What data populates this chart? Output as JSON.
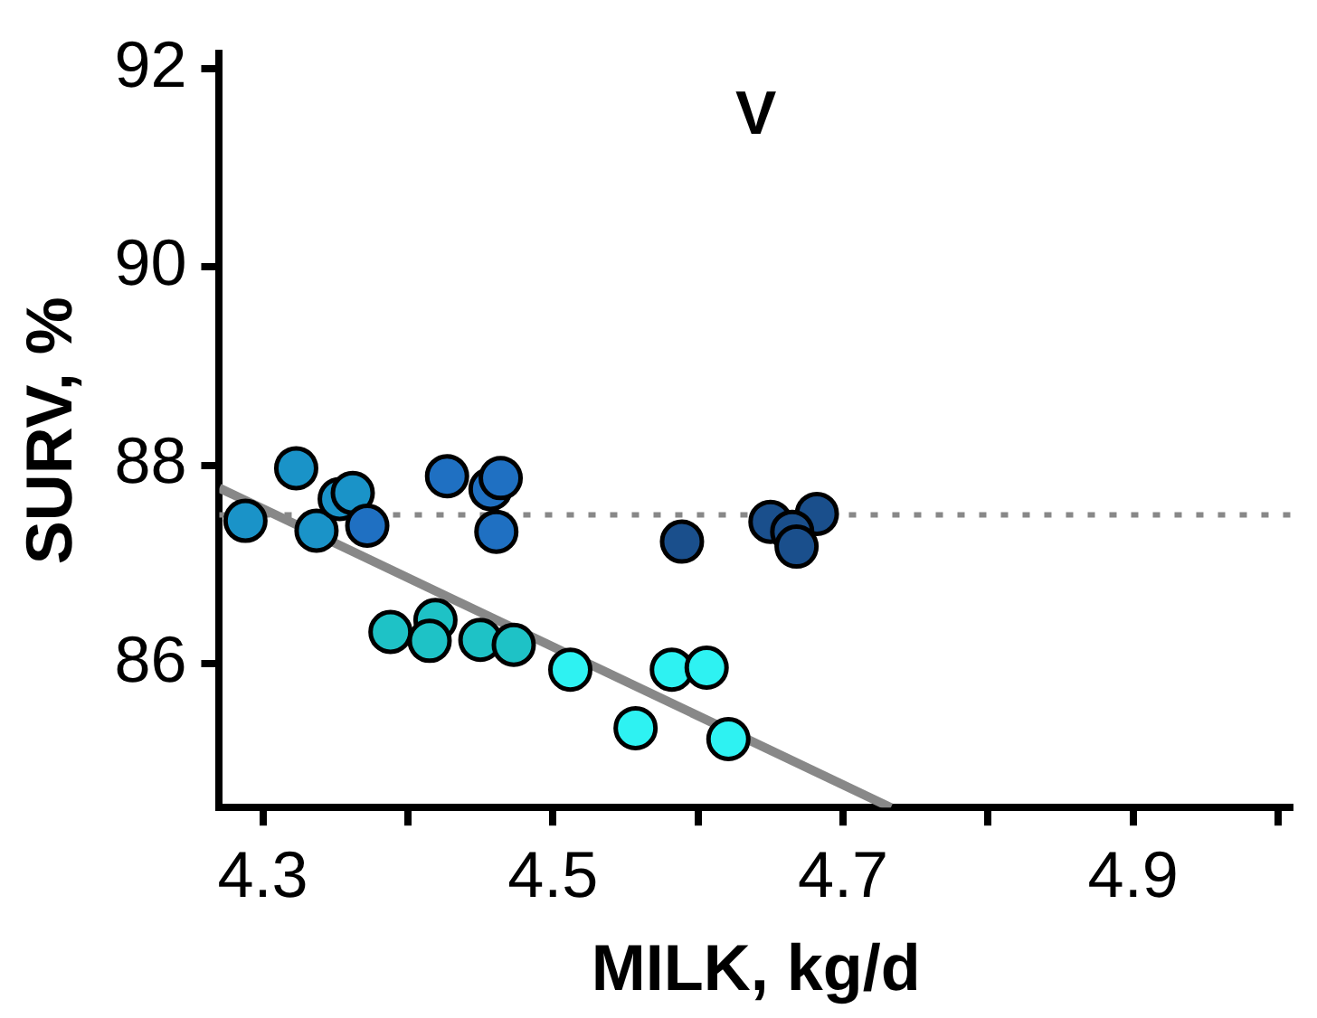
{
  "chart_data": {
    "type": "scatter",
    "title": "V",
    "xlabel": "MILK, kg/d",
    "ylabel": "SURV, %",
    "xlim": [
      4.27,
      5.01
    ],
    "ylim": [
      84.55,
      92.15
    ],
    "xticks": [
      4.3,
      {
        "value": 4.4,
        "label": null
      },
      4.5,
      {
        "value": 4.6,
        "label": null
      },
      4.7,
      {
        "value": 4.8,
        "label": null
      },
      4.9,
      {
        "value": 5.0,
        "label": null
      }
    ],
    "yticks": [
      86,
      88,
      90,
      92
    ],
    "series": [
      {
        "marker": "circle",
        "x": [
          4.288,
          4.323,
          4.337,
          4.353,
          4.362,
          4.372,
          4.427,
          4.457,
          4.464,
          4.461,
          4.388,
          4.419,
          4.415,
          4.45,
          4.473,
          4.512,
          4.557,
          4.582,
          4.606,
          4.621,
          4.589,
          4.65,
          4.682,
          4.665,
          4.668
        ],
        "values": [
          87.44,
          87.97,
          87.34,
          87.66,
          87.72,
          87.39,
          87.89,
          87.76,
          87.87,
          87.33,
          86.32,
          86.44,
          86.23,
          86.24,
          86.19,
          85.94,
          85.35,
          85.94,
          85.96,
          85.24,
          87.23,
          87.43,
          87.51,
          87.33,
          87.18
        ],
        "colors": [
          "#1a93c8",
          "#1a93c8",
          "#1a93c8",
          "#1a93c8",
          "#1a93c8",
          "#1f70c2",
          "#1f70c2",
          "#1f70c2",
          "#1f70c2",
          "#1f70c2",
          "#1ec2c6",
          "#1ec2c6",
          "#1ec2c6",
          "#1ec2c6",
          "#1ec2c6",
          "#2ef2f2",
          "#2ef2f2",
          "#2ef2f2",
          "#2ef2f2",
          "#2ef2f2",
          "#1a4f8c",
          "#1a4f8c",
          "#1a4f8c",
          "#1a4f8c",
          "#1a4f8c"
        ]
      },
      {
        "type": "line",
        "x": [
          4.27,
          4.733
        ],
        "values": [
          87.77,
          84.55
        ],
        "color": "#888888"
      }
    ],
    "ref_lines": [
      {
        "axis": "y",
        "value": 87.5,
        "color": "#888888",
        "line_style": "dotted"
      }
    ]
  }
}
